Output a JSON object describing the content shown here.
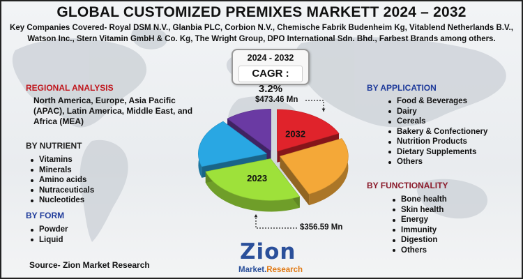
{
  "title": "GLOBAL CUSTOMIZED PREMIXES MARKETT 2024 – 2032",
  "key_companies": "Key Companies Covered- Royal DSM N.V., Glanbia PLC, Corbion N.V., Chemische Fabrik Budenheim Kg, Vitablend Netherlands B.V., Watson Inc., Stern Vitamin GmbH & Co. Kg, The Wright Group, DPO International Sdn. Bhd., Farbest Brands among others.",
  "cagr": {
    "period": "2024 - 2032",
    "value": "CAGR : 3.2%"
  },
  "regional": {
    "heading": "REGIONAL ANALYSIS",
    "text": "North America, Europe, Asia Pacific (APAC), Latin America, Middle East, and Africa (MEA)"
  },
  "nutrient": {
    "heading": "BY NUTRIENT",
    "items": [
      "Vitamins",
      "Minerals",
      "Amino acids",
      "Nutraceuticals",
      "Nucleotides"
    ]
  },
  "form": {
    "heading": "BY FORM",
    "items": [
      "Powder",
      "Liquid"
    ]
  },
  "application": {
    "heading": "BY APPLICATION",
    "items": [
      "Food & Beverages",
      "Dairy",
      "Cereals",
      "Bakery & Confectionery",
      "Nutrition Products",
      "Dietary Supplements",
      "Others"
    ]
  },
  "functionality": {
    "heading": "BY FUNCTIONALITY",
    "items": [
      "Bone health",
      "Skin health",
      "Energy",
      "Immunity",
      "Digestion",
      "Others"
    ]
  },
  "source": "Source- Zion Market Research",
  "logo": {
    "main": "Zion",
    "sub_a": "Market.",
    "sub_b": "Research"
  },
  "chart_data": {
    "type": "pie",
    "style": "3d-exploded",
    "values": [
      {
        "label": "2023",
        "value": "$356.59 Mn"
      },
      {
        "label": "2032",
        "value": "$473.46 Mn"
      }
    ],
    "slices": [
      {
        "label": "2032",
        "share": 0.18,
        "color": "#e0232b"
      },
      {
        "label": "",
        "share": 0.25,
        "color": "#f4a838"
      },
      {
        "label": "2023",
        "share": 0.27,
        "color": "#9ee13a"
      },
      {
        "label": "",
        "share": 0.19,
        "color": "#29a7e3"
      },
      {
        "label": "",
        "share": 0.11,
        "color": "#6a3aa3"
      }
    ]
  }
}
